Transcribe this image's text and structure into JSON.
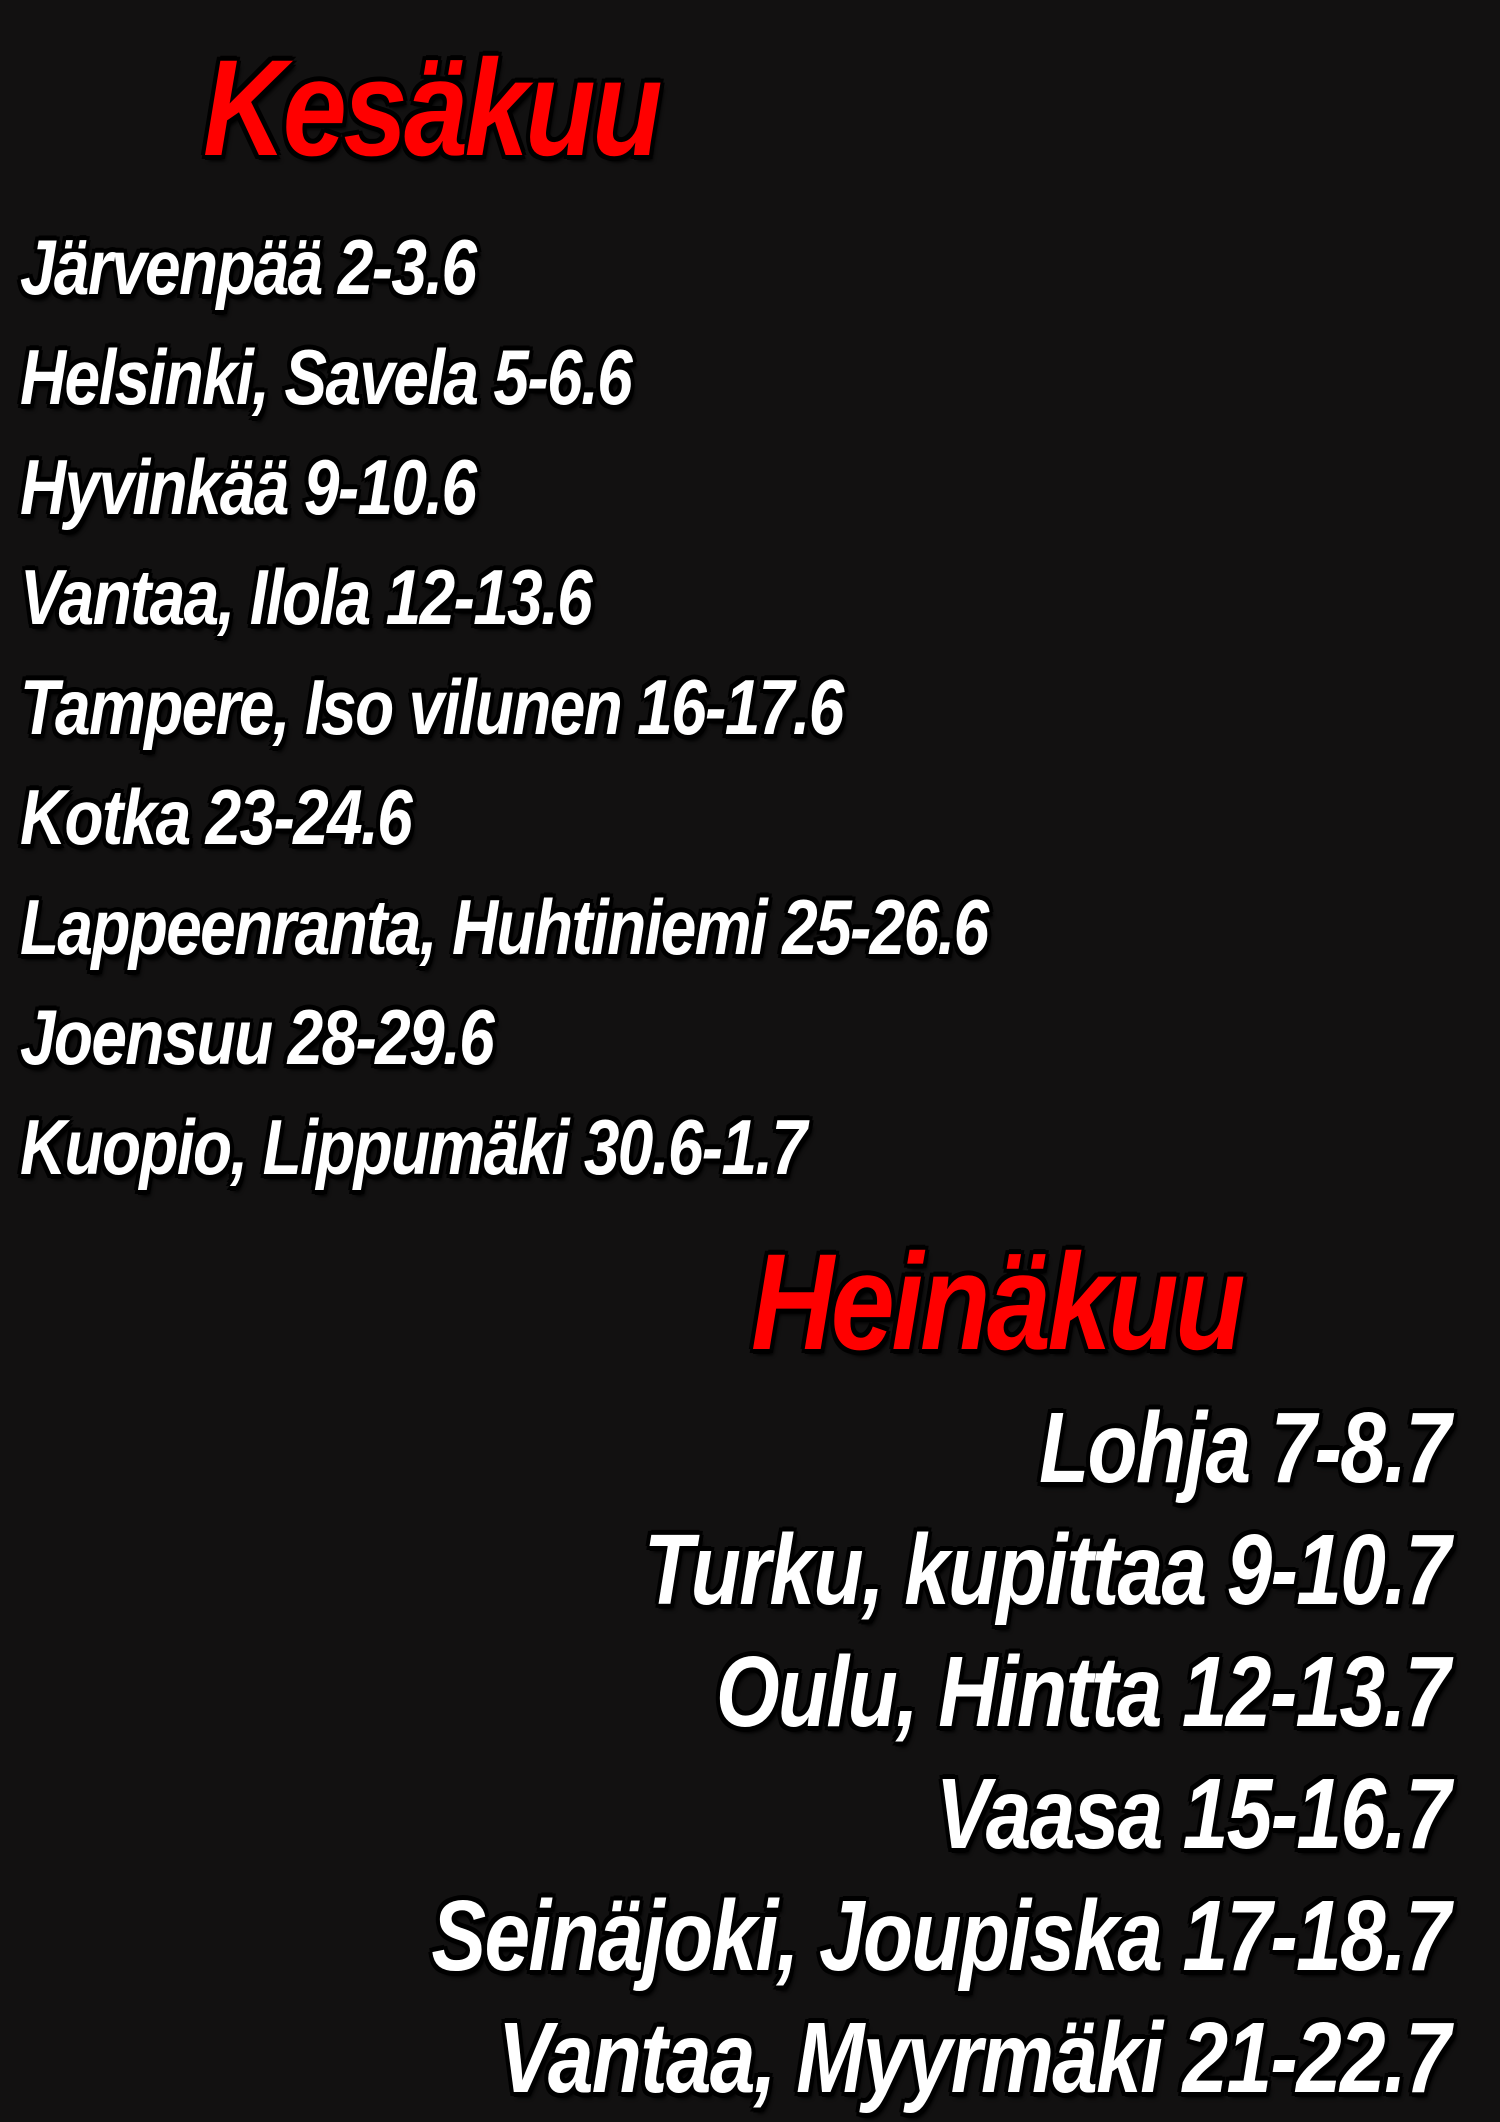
{
  "colors": {
    "background": "#121111",
    "heading": "#ff0000",
    "text": "#ffffff",
    "outline": "#000000"
  },
  "june": {
    "title": "Kesäkuu",
    "events": [
      "Järvenpää 2-3.6",
      "Helsinki, Savela 5-6.6",
      "Hyvinkää 9-10.6",
      "Vantaa, Ilola 12-13.6",
      "Tampere, Iso vilunen 16-17.6",
      "Kotka 23-24.6",
      "Lappeenranta, Huhtiniemi 25-26.6",
      "Joensuu 28-29.6",
      "Kuopio, Lippumäki 30.6-1.7"
    ]
  },
  "july": {
    "title": "Heinäkuu",
    "events": [
      "Lohja 7-8.7",
      "Turku, kupittaa 9-10.7",
      "Oulu, Hintta 12-13.7",
      "Vaasa 15-16.7",
      "Seinäjoki, Joupiska 17-18.7",
      "Vantaa, Myyrmäki 21-22.7"
    ]
  }
}
